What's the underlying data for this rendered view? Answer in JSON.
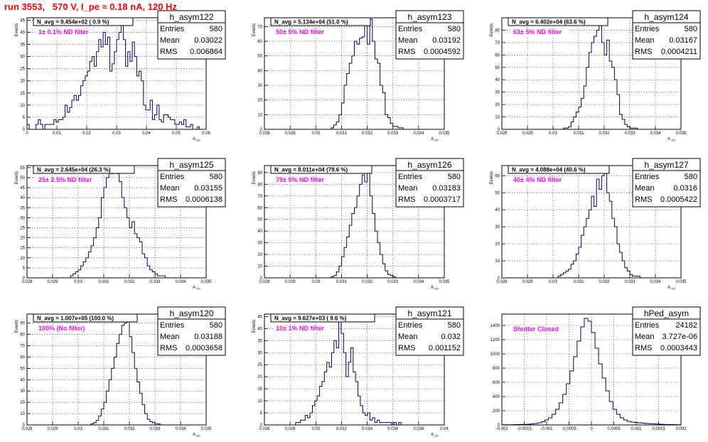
{
  "page": {
    "title": "run 3553,   570 V, I_pe ≈ 0.18 nA, 120 Hz"
  },
  "stats_labels": {
    "entries": "Entries",
    "mean": "Mean",
    "rms": "RMS"
  },
  "chart_data": [
    {
      "type": "bar",
      "name": "h_asym122",
      "navg_label": "N_avg = 9.454e+02 ( 0.9 %)",
      "annotation": "1± 0.1% ND filter",
      "stats": {
        "entries": "580",
        "mean": "0.03022",
        "rms": "0.006864"
      },
      "xlim": [
        0.0,
        0.06
      ],
      "ylim": [
        0,
        46
      ],
      "xlabel": "A_UD",
      "ylabel": "Events",
      "x_ticks": [
        "0",
        "0.01",
        "0.02",
        "0.03",
        "0.04",
        "0.05",
        "0.06"
      ],
      "y_ticks": [
        0,
        5,
        10,
        15,
        20,
        25,
        30,
        35,
        40,
        45
      ],
      "bin_edges_range": [
        0.0,
        0.06
      ],
      "values": [
        2,
        0,
        0,
        0,
        2,
        4,
        2,
        0,
        2,
        2,
        2,
        2,
        4,
        3,
        4,
        4,
        5,
        10,
        7,
        9,
        12,
        14,
        12,
        14,
        18,
        20,
        22,
        24,
        28,
        30,
        26,
        32,
        37,
        34,
        40,
        35,
        38,
        24,
        27,
        32,
        37,
        40,
        46,
        37,
        26,
        32,
        28,
        36,
        30,
        22,
        24,
        20,
        10,
        8,
        8,
        12,
        4,
        6,
        10,
        4,
        3,
        6,
        6,
        5,
        4,
        4,
        2,
        2,
        3,
        2,
        4,
        1,
        1,
        2,
        0,
        0,
        1,
        0,
        0,
        0
      ]
    },
    {
      "type": "bar",
      "name": "h_asym123",
      "navg_label": "N_avg = 5.134e+04 (51.0 %)",
      "annotation": "50± 5% ND filter",
      "stats": {
        "entries": "580",
        "mean": "0.03192",
        "rms": "0.0004592"
      },
      "xlim": [
        0.028,
        0.035
      ],
      "ylim": [
        0,
        76
      ],
      "xlabel": "A_UD",
      "ylabel": "Events",
      "x_ticks": [
        "0.028",
        "0.029",
        "0.03",
        "0.031",
        "0.032",
        "0.033",
        "0.034",
        "0.035"
      ],
      "y_ticks": [
        0,
        10,
        20,
        30,
        40,
        50,
        60,
        70
      ],
      "bin_edges_range": [
        0.0306,
        0.0334
      ],
      "values": [
        1,
        3,
        5,
        10,
        18,
        30,
        38,
        45,
        50,
        60,
        58,
        62,
        63,
        72,
        58,
        75,
        60,
        48,
        45,
        30,
        25,
        10,
        8,
        4,
        2,
        2,
        1,
        1
      ]
    },
    {
      "type": "bar",
      "name": "h_asym124",
      "navg_label": "N_avg = 6.402e+04 (63.6 %)",
      "annotation": "63± 5% ND filter",
      "stats": {
        "entries": "580",
        "mean": "0.03167",
        "rms": "0.0004211"
      },
      "xlim": [
        0.028,
        0.035
      ],
      "ylim": [
        0,
        90
      ],
      "xlabel": "A_UD",
      "ylabel": "Events",
      "x_ticks": [
        "0.028",
        "0.029",
        "0.03",
        "0.031",
        "0.032",
        "0.033",
        "0.034",
        "0.035"
      ],
      "y_ticks": [
        0,
        10,
        20,
        30,
        40,
        50,
        60,
        70,
        80
      ],
      "bin_edges_range": [
        0.0304,
        0.0334
      ],
      "values": [
        1,
        1,
        2,
        6,
        10,
        14,
        18,
        25,
        35,
        50,
        62,
        70,
        75,
        80,
        86,
        70,
        60,
        72,
        55,
        50,
        40,
        28,
        12,
        8,
        4,
        2,
        1,
        1,
        1,
        0
      ]
    },
    {
      "type": "bar",
      "name": "h_asym125",
      "navg_label": "N_avg = 2.645e+04 (26.3 %)",
      "annotation": "25± 2.5% ND filter",
      "stats": {
        "entries": "580",
        "mean": "0.03155",
        "rms": "0.0006138"
      },
      "xlim": [
        0.028,
        0.035
      ],
      "ylim": [
        0,
        56
      ],
      "xlabel": "A_UD",
      "ylabel": "Events",
      "x_ticks": [
        "0.028",
        "0.029",
        "0.03",
        "0.031",
        "0.032",
        "0.033",
        "0.034",
        "0.035"
      ],
      "y_ticks": [
        0,
        5,
        10,
        15,
        20,
        25,
        30,
        35,
        40,
        45,
        50,
        55
      ],
      "bin_edges_range": [
        0.0297,
        0.0334
      ],
      "values": [
        1,
        2,
        3,
        4,
        6,
        8,
        10,
        13,
        16,
        20,
        25,
        30,
        40,
        45,
        50,
        52,
        52,
        54,
        52,
        48,
        40,
        35,
        30,
        25,
        28,
        22,
        20,
        18,
        12,
        10,
        6,
        4,
        3,
        2,
        1,
        1,
        1
      ]
    },
    {
      "type": "bar",
      "name": "h_asym126",
      "navg_label": "N_avg = 8.011e+04 (79.6 %)",
      "annotation": "79± 5% ND filter",
      "stats": {
        "entries": "580",
        "mean": "0.03183",
        "rms": "0.0003717"
      },
      "xlim": [
        0.028,
        0.035
      ],
      "ylim": [
        0,
        96
      ],
      "xlabel": "A_UD",
      "ylabel": "Events",
      "x_ticks": [
        "0.028",
        "0.029",
        "0.03",
        "0.031",
        "0.032",
        "0.033",
        "0.034",
        "0.035"
      ],
      "y_ticks": [
        0,
        10,
        20,
        30,
        40,
        50,
        60,
        70,
        80,
        90
      ],
      "bin_edges_range": [
        0.0306,
        0.0332
      ],
      "values": [
        1,
        2,
        5,
        10,
        18,
        26,
        35,
        45,
        55,
        60,
        70,
        80,
        88,
        82,
        90,
        70,
        55,
        40,
        30,
        20,
        12,
        6,
        3,
        2,
        1,
        0
      ]
    },
    {
      "type": "bar",
      "name": "h_asym127",
      "navg_label": "N_avg = 4.088e+04 (40.6 %)",
      "annotation": "40± 4% ND filter",
      "stats": {
        "entries": "580",
        "mean": "0.0316",
        "rms": "0.0005422"
      },
      "xlim": [
        0.028,
        0.035
      ],
      "ylim": [
        0,
        66
      ],
      "xlabel": "A_UD",
      "ylabel": "Events",
      "x_ticks": [
        "0.028",
        "0.029",
        "0.03",
        "0.031",
        "0.032",
        "0.033",
        "0.034",
        "0.035"
      ],
      "y_ticks": [
        0,
        10,
        20,
        30,
        40,
        50,
        60
      ],
      "bin_edges_range": [
        0.0302,
        0.0334
      ],
      "values": [
        1,
        2,
        3,
        4,
        5,
        8,
        10,
        14,
        18,
        25,
        30,
        35,
        40,
        48,
        42,
        58,
        52,
        60,
        62,
        50,
        45,
        35,
        30,
        20,
        15,
        10,
        6,
        4,
        2,
        1,
        1,
        1
      ]
    },
    {
      "type": "bar",
      "name": "h_asym120",
      "navg_label": "N_avg = 1.007e+05 (100.0 %)",
      "annotation": "100% (No filter)",
      "stats": {
        "entries": "580",
        "mean": "0.03188",
        "rms": "0.0003658"
      },
      "xlim": [
        0.028,
        0.035
      ],
      "ylim": [
        0,
        98
      ],
      "xlabel": "A_UD",
      "ylabel": "Events",
      "x_ticks": [
        "0.028",
        "0.029",
        "0.03",
        "0.031",
        "0.032",
        "0.033",
        "0.034",
        "0.035"
      ],
      "y_ticks": [
        0,
        10,
        20,
        30,
        40,
        50,
        60,
        70,
        80,
        90
      ],
      "bin_edges_range": [
        0.0305,
        0.0335
      ],
      "values": [
        1,
        2,
        4,
        8,
        14,
        20,
        30,
        40,
        50,
        60,
        72,
        80,
        88,
        90,
        95,
        78,
        64,
        50,
        38,
        28,
        18,
        10,
        5,
        3,
        2,
        1,
        1,
        0,
        0,
        0
      ]
    },
    {
      "type": "bar",
      "name": "h_asym121",
      "navg_label": "N_avg = 9.627e+03 ( 9.6 %)",
      "annotation": "10± 1% ND filter",
      "stats": {
        "entries": "580",
        "mean": "0.032",
        "rms": "0.001152"
      },
      "xlim": [
        0.025,
        0.04
      ],
      "ylim": [
        0,
        46
      ],
      "xlabel": "A_UD",
      "ylabel": "Events",
      "x_ticks": [
        "0.026",
        "0.028",
        "0.03",
        "0.032",
        "0.034",
        "0.036",
        "0.038",
        "0.04"
      ],
      "y_ticks": [
        0,
        5,
        10,
        15,
        20,
        25,
        30,
        35,
        40,
        45
      ],
      "bin_edges_range": [
        0.0276,
        0.0364
      ],
      "values": [
        1,
        1,
        2,
        2,
        4,
        3,
        5,
        8,
        10,
        12,
        16,
        18,
        22,
        26,
        24,
        30,
        35,
        32,
        44,
        38,
        30,
        20,
        26,
        32,
        22,
        18,
        12,
        8,
        5,
        4,
        5,
        2,
        3,
        1,
        2,
        1,
        1,
        1,
        1,
        1,
        0,
        1,
        0,
        1
      ]
    },
    {
      "type": "bar",
      "name": "hPed_asym",
      "navg_label": "",
      "annotation": "Shutter Closed",
      "stats": {
        "entries": "24182",
        "mean": "3.727e-06",
        "rms": "0.0003443"
      },
      "xlim": [
        -0.002,
        0.002
      ],
      "ylim": [
        0,
        1560
      ],
      "xlabel": "",
      "ylabel": "",
      "x_ticks": [
        "-0.002",
        "-0.0015",
        "-0.001",
        "-0.0005",
        "0",
        "0.0005",
        "0.001",
        "0.0015",
        "0.002"
      ],
      "y_ticks": [
        0,
        200,
        400,
        600,
        800,
        1000,
        1200,
        1400
      ],
      "bin_edges_range": [
        -0.002,
        0.002
      ],
      "values": [
        2,
        3,
        3,
        4,
        5,
        6,
        8,
        10,
        14,
        20,
        30,
        45,
        70,
        100,
        150,
        220,
        310,
        430,
        580,
        760,
        960,
        1180,
        1380,
        1500,
        1460,
        1300,
        1080,
        860,
        660,
        480,
        330,
        220,
        150,
        100,
        70,
        50,
        40,
        35,
        30,
        25,
        20,
        18,
        15,
        12,
        10,
        8,
        6,
        5,
        4,
        3
      ]
    }
  ]
}
